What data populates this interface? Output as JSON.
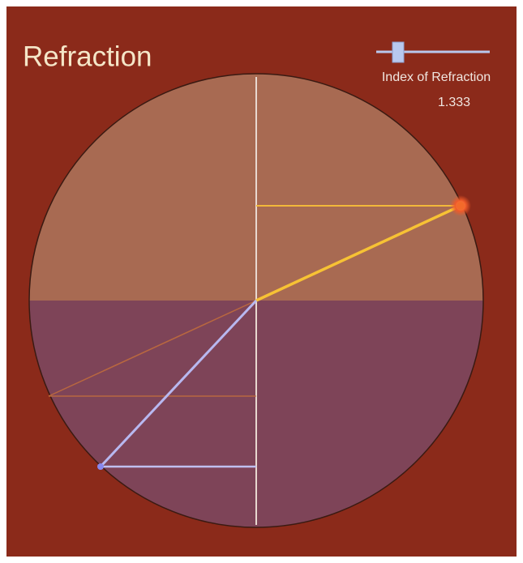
{
  "title": "Refraction",
  "slider": {
    "label": "Index of Refraction",
    "value": "1.333"
  }
}
